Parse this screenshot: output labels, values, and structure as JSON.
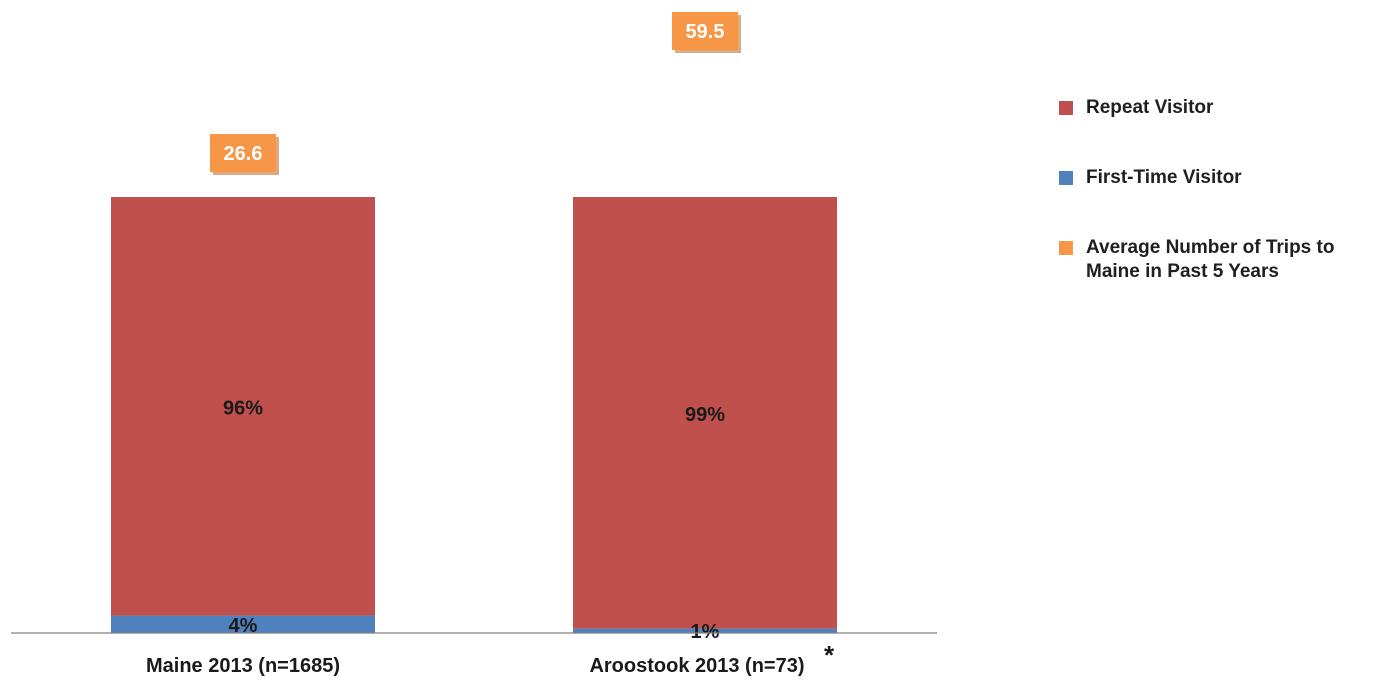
{
  "chart_data": {
    "type": "bar",
    "stacked": true,
    "categories": [
      "Maine 2013 (n=1685)",
      "Aroostook 2013 (n=73)"
    ],
    "category_notes": [
      "",
      "*"
    ],
    "series": [
      {
        "name": "First-Time Visitor",
        "color": "#4f81bd",
        "values": [
          4,
          1
        ],
        "labels": [
          "4%",
          "1%"
        ]
      },
      {
        "name": "Repeat Visitor",
        "color": "#c0504d",
        "values": [
          96,
          99
        ],
        "labels": [
          "96%",
          "99%"
        ]
      }
    ],
    "secondary_series": {
      "name": "Average Number of Trips to Maine in Past 5 Years",
      "color": "#f79646",
      "values": [
        26.6,
        59.5
      ],
      "labels": [
        "26.6",
        "59.5"
      ]
    },
    "legend": {
      "position": "right",
      "items": [
        {
          "label": "Repeat Visitor",
          "color": "#c0504d"
        },
        {
          "label": "First-Time Visitor",
          "color": "#4f81bd"
        },
        {
          "label": "Average Number of Trips to Maine in Past 5 Years",
          "color": "#f79646"
        }
      ]
    },
    "ylim": [
      0,
      100
    ],
    "grid": false
  }
}
